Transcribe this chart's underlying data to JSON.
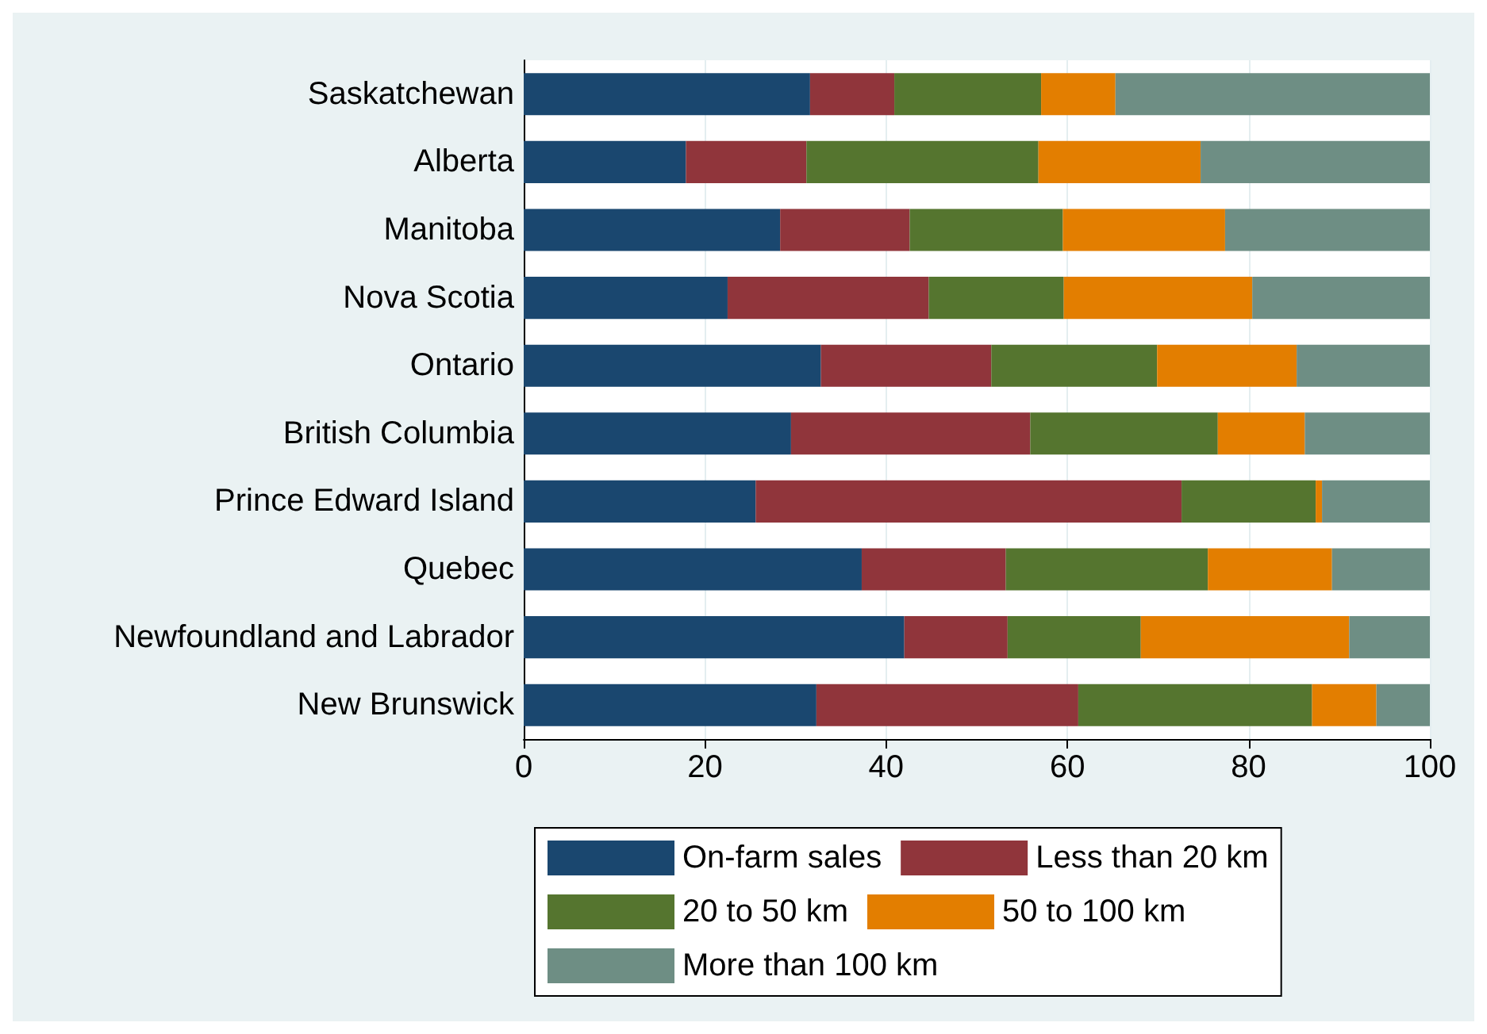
{
  "chart_data": {
    "type": "bar",
    "orientation": "horizontal",
    "stacked": true,
    "categories": [
      "Saskatchewan",
      "Alberta",
      "Manitoba",
      "Nova Scotia",
      "Ontario",
      "British Columbia",
      "Prince Edward Island",
      "Quebec",
      "Newfoundland and Labrador",
      "New Brunswick"
    ],
    "series": [
      {
        "name": "On-farm sales",
        "color": "#1a476f",
        "values": [
          31.6,
          17.9,
          28.3,
          22.5,
          32.8,
          29.5,
          25.6,
          37.3,
          42.0,
          32.3
        ]
      },
      {
        "name": "Less than 20 km",
        "color": "#90353b",
        "values": [
          9.3,
          13.3,
          14.3,
          22.2,
          18.8,
          26.4,
          47.0,
          15.9,
          11.4,
          28.9
        ]
      },
      {
        "name": "20 to 50 km",
        "color": "#55752f",
        "values": [
          16.2,
          25.6,
          16.9,
          14.9,
          18.3,
          20.7,
          14.8,
          22.3,
          14.7,
          25.8
        ]
      },
      {
        "name": "50 to 100 km",
        "color": "#e37e00",
        "values": [
          8.2,
          17.9,
          17.9,
          20.8,
          15.4,
          9.6,
          0.7,
          13.7,
          23.0,
          7.1
        ]
      },
      {
        "name": "More than 100 km",
        "color": "#6e8e84",
        "values": [
          34.7,
          25.3,
          22.6,
          19.6,
          14.7,
          13.8,
          11.9,
          10.8,
          8.9,
          5.9
        ]
      }
    ],
    "xlim": [
      0,
      100
    ],
    "xticks": [
      0,
      20,
      40,
      60,
      80,
      100
    ],
    "grid": "x",
    "legend": "bottom"
  }
}
